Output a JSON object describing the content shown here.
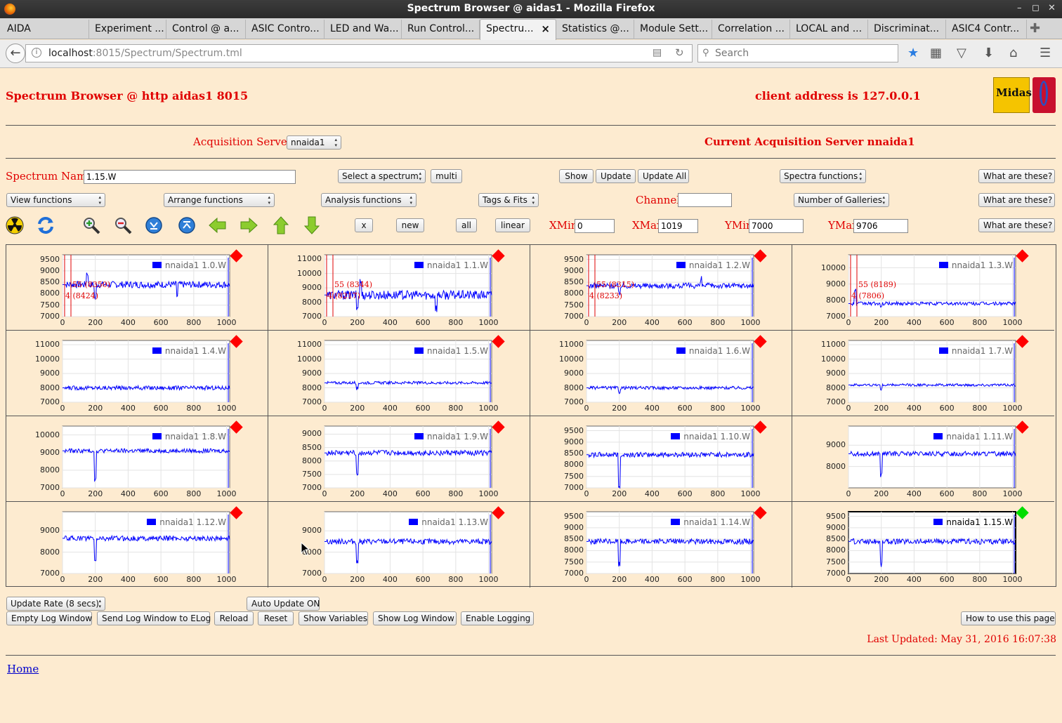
{
  "window": {
    "title": "Spectrum Browser @ aidas1 - Mozilla Firefox"
  },
  "tabs": [
    {
      "label": "AIDA"
    },
    {
      "label": "Experiment ..."
    },
    {
      "label": "Control @ a..."
    },
    {
      "label": "ASIC Contro..."
    },
    {
      "label": "LED and Wa..."
    },
    {
      "label": "Run Control..."
    },
    {
      "label": "Spectru...",
      "active": true
    },
    {
      "label": "Statistics @..."
    },
    {
      "label": "Module Sett..."
    },
    {
      "label": "Correlation ..."
    },
    {
      "label": "LOCAL and ..."
    },
    {
      "label": "Discriminat..."
    },
    {
      "label": "ASIC4 Contr..."
    }
  ],
  "nav": {
    "url_host": "localhost",
    "url_rest": ":8015/Spectrum/Spectrum.tml",
    "search_placeholder": "Search"
  },
  "page": {
    "title": "Spectrum Browser @ http aidas1 8015",
    "client_address": "client address is 127.0.0.1",
    "acq_label": "Acquisition Servers",
    "acq_selected": "nnaida1",
    "current_server": "Current Acquisition Server nnaida1",
    "spectrum_name_label": "Spectrum Name:",
    "spectrum_name_value": "1.15.W",
    "select_spectrum": "Select a spectrum",
    "multi": "multi",
    "show": "Show",
    "update": "Update",
    "update_all": "Update All",
    "spectra_functions": "Spectra functions",
    "what": "What are these?",
    "view_functions": "View functions",
    "arrange_functions": "Arrange functions",
    "analysis_functions": "Analysis functions",
    "tags_fits": "Tags & Fits",
    "channel_label": "Channel:",
    "channel_value": "",
    "num_galleries": "Number of Galleries",
    "btn_x": "x",
    "btn_new": "new",
    "btn_all": "all",
    "btn_linear": "linear",
    "xmin_label": "XMin",
    "xmin_value": "0",
    "xmax_label": "XMax",
    "xmax_value": "1019",
    "ymin_label": "YMin",
    "ymin_value": "7000",
    "ymax_label": "YMax",
    "ymax_value": "9706",
    "update_rate": "Update Rate (8 secs)",
    "auto_update": "Auto Update ON",
    "empty_log": "Empty Log Window",
    "send_log": "Send Log Window to ELog",
    "reload": "Reload",
    "reset": "Reset",
    "show_variables": "Show Variables",
    "show_log": "Show Log Window",
    "enable_logging": "Enable Logging",
    "how_to": "How to use this page",
    "last_updated": "Last Updated: May 31, 2016 16:07:38",
    "home": "Home",
    "logo_text": "Midas"
  },
  "colors": {
    "trace": "#0000ff",
    "status_red": "#ff0000",
    "status_green": "#00dd00",
    "label_red": "#e00000"
  },
  "icons": [
    "radiation-icon",
    "refresh-icon",
    "zoom-in-icon",
    "zoom-out-icon",
    "expand-down-icon",
    "expand-up-icon",
    "arrow-left-icon",
    "arrow-right-icon",
    "arrow-up-icon",
    "arrow-down-icon"
  ],
  "spectra": [
    {
      "name": "nnaida1 1.0.W",
      "yticks": [
        7000,
        7500,
        8000,
        8500,
        9000,
        9500
      ],
      "ylim": [
        7000,
        9700
      ],
      "base": 8400,
      "noise": 150,
      "status": "red",
      "markers": [
        "55 (8350)",
        "4 (8424)"
      ],
      "spikes": [
        [
          200,
          -600
        ],
        [
          150,
          500
        ],
        [
          700,
          -500
        ]
      ]
    },
    {
      "name": "nnaida1 1.1.W",
      "yticks": [
        7000,
        8000,
        9000,
        10000,
        11000
      ],
      "ylim": [
        7000,
        11300
      ],
      "base": 8500,
      "noise": 320,
      "status": "red",
      "markers": [
        "55 (8344)",
        "4 (8217)"
      ],
      "spikes": [
        [
          200,
          -900
        ],
        [
          680,
          -900
        ],
        [
          220,
          900
        ]
      ]
    },
    {
      "name": "nnaida1 1.2.W",
      "yticks": [
        7000,
        7500,
        8000,
        8500,
        9000,
        9500
      ],
      "ylim": [
        7000,
        9700
      ],
      "base": 8350,
      "noise": 120,
      "status": "red",
      "markers": [
        "55 (8315)",
        "4 (8233)"
      ],
      "spikes": [
        [
          200,
          -350
        ],
        [
          700,
          300
        ]
      ]
    },
    {
      "name": "nnaida1 1.3.W",
      "yticks": [
        7000,
        8000,
        9000,
        10000
      ],
      "ylim": [
        7000,
        10800
      ],
      "base": 7800,
      "noise": 110,
      "status": "red",
      "markers": [
        "55 (8189)",
        "4 (7806)"
      ],
      "spikes": [
        [
          40,
          800
        ],
        [
          200,
          -250
        ]
      ]
    },
    {
      "name": "nnaida1 1.4.W",
      "yticks": [
        7000,
        8000,
        9000,
        10000,
        11000
      ],
      "ylim": [
        7000,
        11300
      ],
      "base": 8000,
      "noise": 150,
      "status": "red",
      "markers": [],
      "spikes": []
    },
    {
      "name": "nnaida1 1.5.W",
      "yticks": [
        7000,
        8000,
        9000,
        10000,
        11000
      ],
      "ylim": [
        7000,
        11300
      ],
      "base": 8350,
      "noise": 100,
      "status": "red",
      "markers": [],
      "spikes": [
        [
          200,
          -400
        ]
      ]
    },
    {
      "name": "nnaida1 1.6.W",
      "yticks": [
        7000,
        8000,
        9000,
        10000,
        11000
      ],
      "ylim": [
        7000,
        11300
      ],
      "base": 8000,
      "noise": 110,
      "status": "red",
      "markers": [],
      "spikes": [
        [
          200,
          -300
        ]
      ]
    },
    {
      "name": "nnaida1 1.7.W",
      "yticks": [
        7000,
        8000,
        9000,
        10000,
        11000
      ],
      "ylim": [
        7000,
        11300
      ],
      "base": 8200,
      "noise": 90,
      "status": "red",
      "markers": [],
      "spikes": [
        [
          200,
          -300
        ]
      ]
    },
    {
      "name": "nnaida1 1.8.W",
      "yticks": [
        7000,
        8000,
        9000,
        10000
      ],
      "ylim": [
        7000,
        10500
      ],
      "base": 9100,
      "noise": 120,
      "status": "red",
      "markers": [],
      "spikes": [
        [
          200,
          -1600
        ]
      ]
    },
    {
      "name": "nnaida1 1.9.W",
      "yticks": [
        7000,
        7500,
        8000,
        8500,
        9000
      ],
      "ylim": [
        7000,
        9300
      ],
      "base": 8300,
      "noise": 100,
      "status": "red",
      "markers": [],
      "spikes": [
        [
          200,
          -800
        ]
      ]
    },
    {
      "name": "nnaida1 1.10.W",
      "yticks": [
        7000,
        7500,
        8000,
        8500,
        9000,
        9500
      ],
      "ylim": [
        7000,
        9700
      ],
      "base": 8450,
      "noise": 110,
      "status": "red",
      "markers": [],
      "spikes": [
        [
          200,
          -1400
        ]
      ]
    },
    {
      "name": "nnaida1 1.11.W",
      "yticks": [
        8000,
        9000
      ],
      "ylim": [
        7000,
        9900
      ],
      "base": 8600,
      "noise": 110,
      "status": "red",
      "markers": [],
      "spikes": [
        [
          200,
          -1000
        ]
      ]
    },
    {
      "name": "nnaida1 1.12.W",
      "yticks": [
        7000,
        8000,
        9000
      ],
      "ylim": [
        7000,
        9900
      ],
      "base": 8650,
      "noise": 120,
      "status": "red",
      "markers": [],
      "spikes": [
        [
          200,
          -1100
        ]
      ]
    },
    {
      "name": "nnaida1 1.13.W",
      "yticks": [
        7000,
        8000,
        9000
      ],
      "ylim": [
        7000,
        9900
      ],
      "base": 8500,
      "noise": 130,
      "status": "red",
      "markers": [],
      "spikes": [
        [
          200,
          -1000
        ]
      ]
    },
    {
      "name": "nnaida1 1.14.W",
      "yticks": [
        7000,
        7500,
        8000,
        8500,
        9000,
        9500
      ],
      "ylim": [
        7000,
        9700
      ],
      "base": 8400,
      "noise": 120,
      "status": "red",
      "markers": [],
      "spikes": [
        [
          200,
          -1000
        ]
      ]
    },
    {
      "name": "nnaida1 1.15.W",
      "yticks": [
        7000,
        7500,
        8000,
        8500,
        9000,
        9500
      ],
      "ylim": [
        7000,
        9700
      ],
      "base": 8400,
      "noise": 120,
      "status": "green",
      "selected": true,
      "markers": [],
      "spikes": [
        [
          200,
          -1000
        ]
      ]
    }
  ],
  "xticks": [
    0,
    200,
    400,
    600,
    800,
    1000
  ]
}
